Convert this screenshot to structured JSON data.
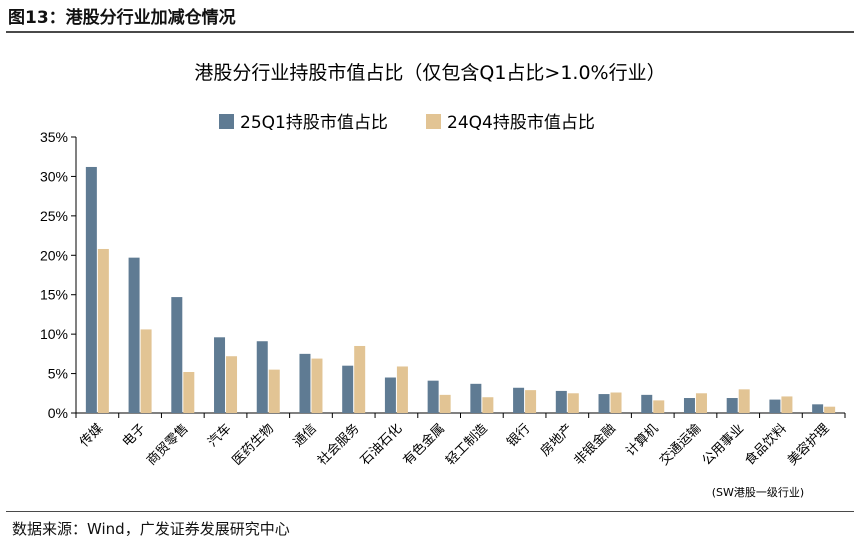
{
  "figure": {
    "label": "图13：港股分行业加减仓情况",
    "source": "数据来源：Wind，广发证券发展研究中心",
    "note": "(SW港股一级行业)"
  },
  "colors": {
    "series_25Q1": "#5f7b93",
    "series_24Q4": "#e2c494",
    "rule": "#4a4a4a"
  },
  "chart_data": {
    "type": "bar",
    "title": "港股分行业持股市值占比（仅包含Q1占比>1.0%行业）",
    "categories": [
      "传媒",
      "电子",
      "商贸零售",
      "汽车",
      "医药生物",
      "通信",
      "社会服务",
      "石油石化",
      "有色金属",
      "轻工制造",
      "银行",
      "房地产",
      "非银金融",
      "计算机",
      "交通运输",
      "公用事业",
      "食品饮料",
      "美容护理"
    ],
    "series": [
      {
        "name": "25Q1持股市值占比",
        "values": [
          31.2,
          19.7,
          14.7,
          9.6,
          9.1,
          7.5,
          6.0,
          4.5,
          4.1,
          3.7,
          3.2,
          2.8,
          2.4,
          2.3,
          1.9,
          1.9,
          1.7,
          1.1
        ]
      },
      {
        "name": "24Q4持股市值占比",
        "values": [
          20.8,
          10.6,
          5.2,
          7.2,
          5.5,
          6.9,
          8.5,
          5.9,
          2.3,
          2.0,
          2.9,
          2.5,
          2.6,
          1.6,
          2.5,
          3.0,
          2.1,
          0.8
        ]
      }
    ],
    "yticks": [
      "0%",
      "5%",
      "10%",
      "15%",
      "20%",
      "25%",
      "30%",
      "35%"
    ],
    "ylim": [
      0,
      35
    ],
    "xlabel": "",
    "ylabel": "",
    "grid": false,
    "legend_position": "top-center"
  }
}
